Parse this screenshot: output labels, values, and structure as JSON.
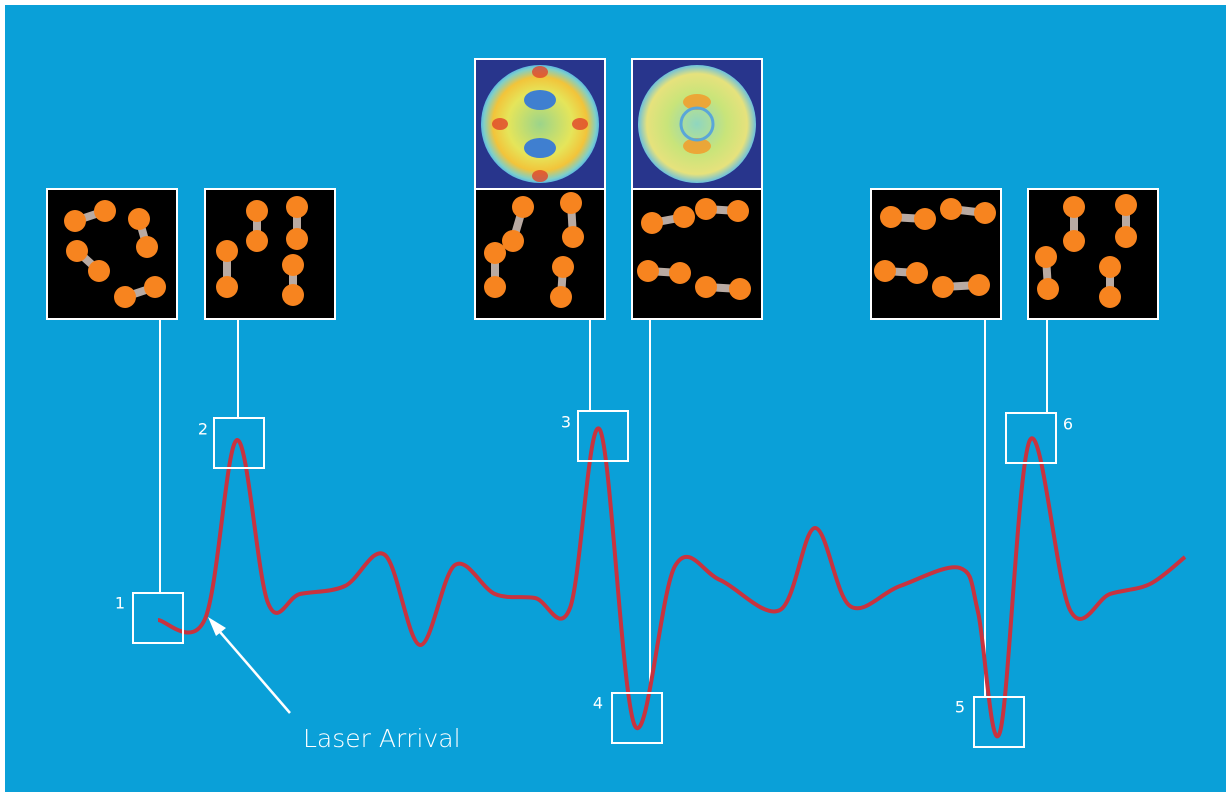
{
  "markers": [
    {
      "label": "1"
    },
    {
      "label": "2"
    },
    {
      "label": "3"
    },
    {
      "label": "4"
    },
    {
      "label": "5"
    },
    {
      "label": "6"
    }
  ],
  "annotation": "Laser Arrival"
}
